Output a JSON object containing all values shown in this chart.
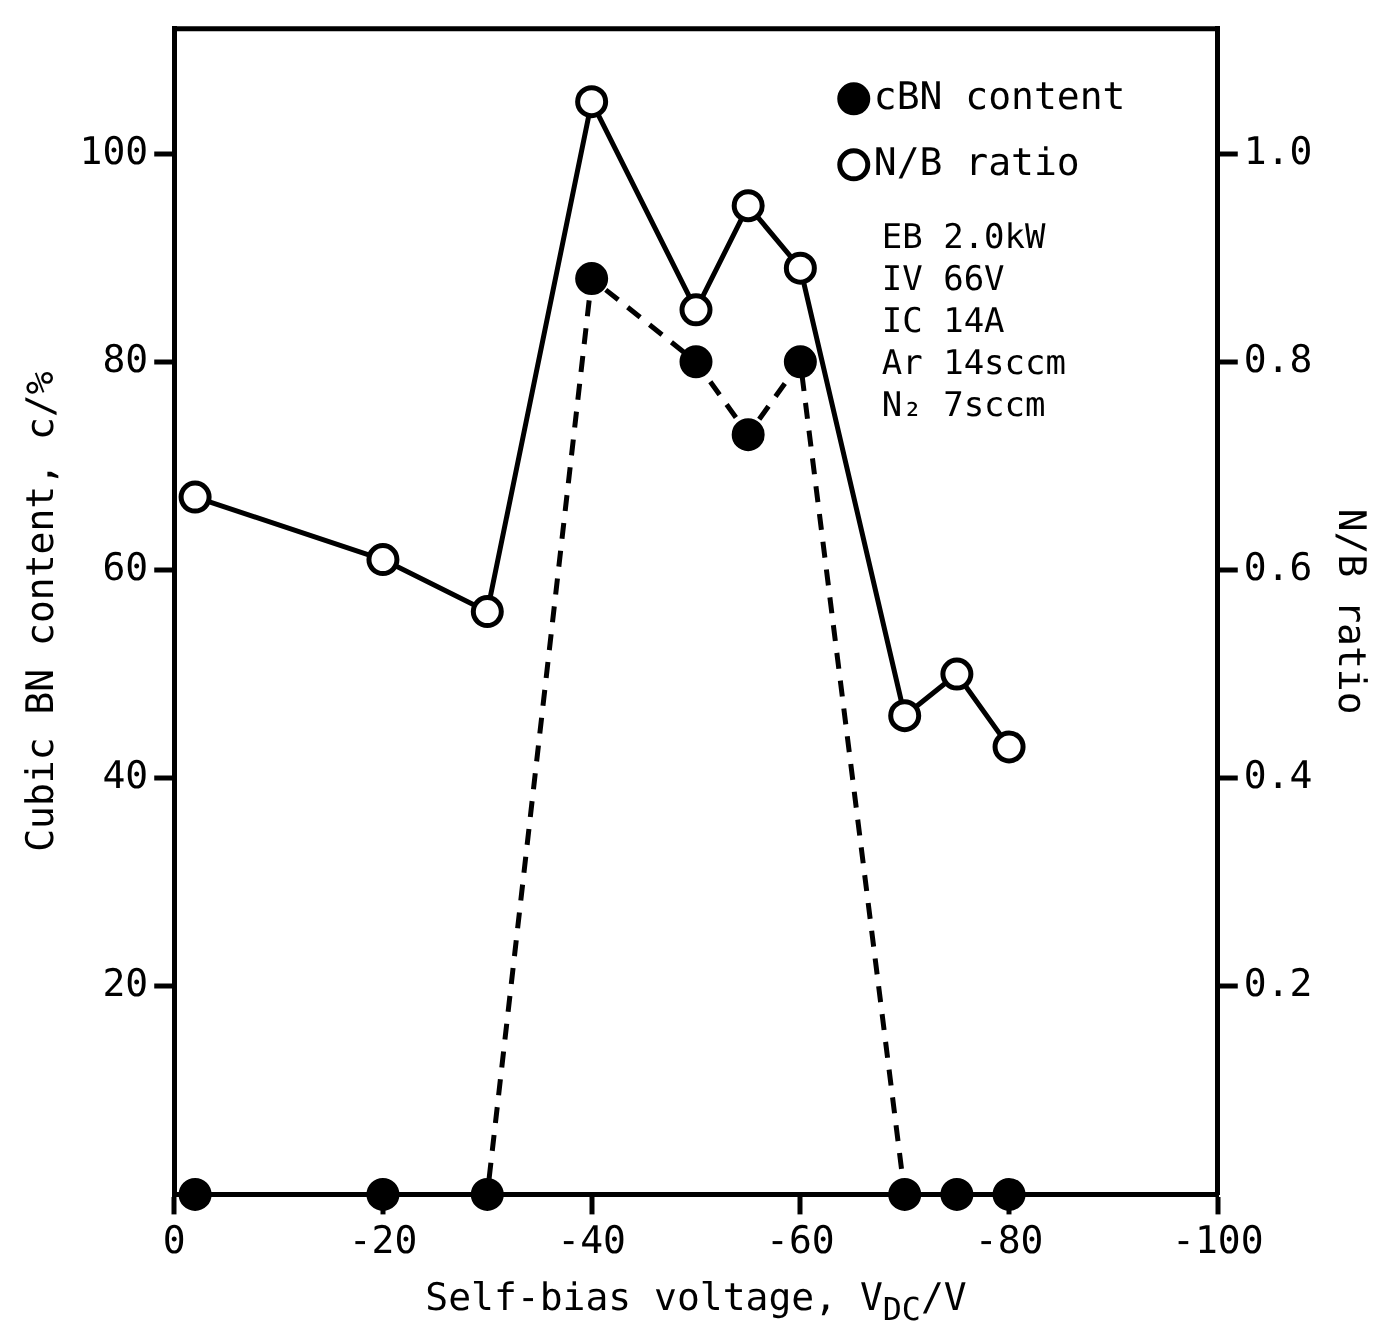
{
  "chart_data": {
    "type": "line",
    "xlabel": "Self-bias voltage, V$_{DC}$/V",
    "ylabel": "Cubic BN content, c/%",
    "y2label": "N/B ratio",
    "x": [
      -2,
      -20,
      -30,
      -40,
      -50,
      -55,
      -60,
      -70,
      -75,
      -80
    ],
    "series": [
      {
        "name": "cBN content",
        "color": "#000000",
        "marker": "circle",
        "line_style": "dashed",
        "values": [
          0,
          0,
          0,
          88,
          80,
          73,
          80,
          0,
          0,
          0
        ]
      },
      {
        "name": "N/B ratio",
        "color": "#000000",
        "marker": "circle",
        "line_style": "solid",
        "axis": "y2",
        "values": [
          0.67,
          0.61,
          0.56,
          1.05,
          0.85,
          0.95,
          0.89,
          0.46,
          0.5,
          0.43
        ]
      }
    ],
    "xlim": [
      0,
      -100
    ],
    "xticks": [
      0,
      -20,
      -40,
      -60,
      -80,
      -100
    ],
    "ylim": [
      0,
      112
    ],
    "yticks": [
      20,
      40,
      60,
      80,
      100
    ],
    "y2lim": [
      0,
      1.12
    ],
    "y2ticks": [
      0.2,
      0.4,
      0.6,
      0.8,
      {
        "value": 1,
        "label": "1.0"
      }
    ],
    "legend": "top right",
    "grid": false,
    "annotations": [
      "EB 2.0kW",
      "IV 66V",
      "IC 14A",
      "Ar 14sccm",
      "N₂ 7sccm"
    ]
  }
}
